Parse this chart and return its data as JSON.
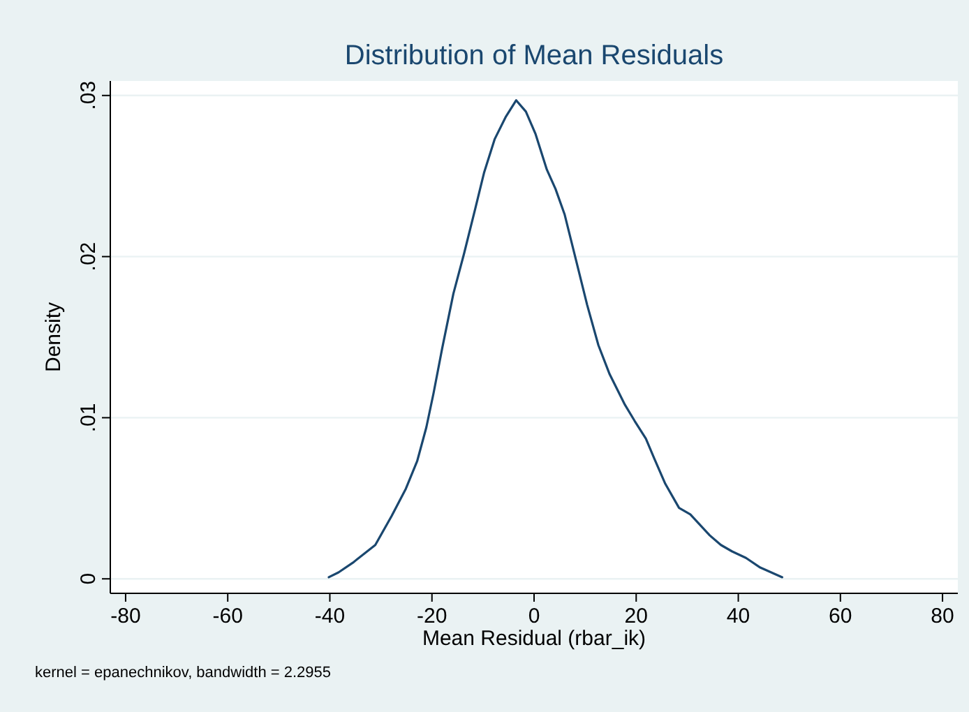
{
  "chart_data": {
    "type": "line",
    "title": "Distribution of Mean Residuals",
    "xlabel": "Mean Residual (rbar_ik)",
    "ylabel": "Density",
    "annotations": [
      "kernel = epanechnikov, bandwidth = 2.2955"
    ],
    "x": [
      -40.2,
      -38.3,
      -35.5,
      -31.1,
      -27.9,
      -25.1,
      -22.9,
      -21.1,
      -19.7,
      -18.0,
      -15.8,
      -13.7,
      -11.5,
      -9.8,
      -7.7,
      -5.5,
      -3.5,
      -1.6,
      0.3,
      2.5,
      4.2,
      6.0,
      8.2,
      10.4,
      12.6,
      14.8,
      17.8,
      19.7,
      21.9,
      23.5,
      25.7,
      28.4,
      30.6,
      34.4,
      36.6,
      38.8,
      41.5,
      44.3,
      48.6
    ],
    "series": [
      {
        "color": "#1a476f",
        "values": [
          0.0001,
          0.0004,
          0.001,
          0.0021,
          0.0039,
          0.0056,
          0.0073,
          0.0094,
          0.0115,
          0.0143,
          0.0177,
          0.0202,
          0.023,
          0.0252,
          0.0273,
          0.0287,
          0.0297,
          0.029,
          0.0276,
          0.0254,
          0.0242,
          0.0226,
          0.0198,
          0.017,
          0.0145,
          0.0127,
          0.0108,
          0.0098,
          0.0087,
          0.0075,
          0.0059,
          0.0044,
          0.004,
          0.0027,
          0.0021,
          0.0017,
          0.0013,
          0.0007,
          0.0001
        ]
      }
    ],
    "xlim": [
      -83,
      83
    ],
    "xticks": [
      -80,
      -60,
      -40,
      -20,
      0,
      20,
      40,
      60,
      80
    ],
    "ylim": [
      -0.0009,
      0.0309
    ],
    "yticks": [
      {
        "value": 0,
        "label": "0"
      },
      {
        "value": 0.01,
        "label": ".01"
      },
      {
        "value": 0.02,
        "label": ".02"
      },
      {
        "value": 0.03,
        "label": ".03"
      }
    ],
    "grid": "y",
    "marker": "none",
    "line_style": "solid"
  }
}
